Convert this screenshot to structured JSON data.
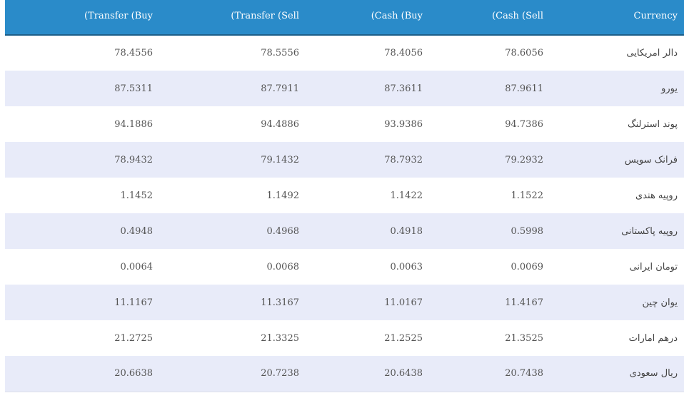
{
  "table": {
    "headers": {
      "transfer_buy": "(Transfer (Buy",
      "transfer_sell": "(Transfer (Sell",
      "cash_buy": "(Cash (Buy",
      "cash_sell": "(Cash (Sell",
      "currency": "Currency"
    },
    "rows": [
      {
        "transfer_buy": "78.4556",
        "transfer_sell": "78.5556",
        "cash_buy": "78.4056",
        "cash_sell": "78.6056",
        "currency": "دالر امریکایی"
      },
      {
        "transfer_buy": "87.5311",
        "transfer_sell": "87.7911",
        "cash_buy": "87.3611",
        "cash_sell": "87.9611",
        "currency": "یورو"
      },
      {
        "transfer_buy": "94.1886",
        "transfer_sell": "94.4886",
        "cash_buy": "93.9386",
        "cash_sell": "94.7386",
        "currency": "پوند استرلنگ"
      },
      {
        "transfer_buy": "78.9432",
        "transfer_sell": "79.1432",
        "cash_buy": "78.7932",
        "cash_sell": "79.2932",
        "currency": "فرانک سویس"
      },
      {
        "transfer_buy": "1.1452",
        "transfer_sell": "1.1492",
        "cash_buy": "1.1422",
        "cash_sell": "1.1522",
        "currency": "روپیه هندی"
      },
      {
        "transfer_buy": "0.4948",
        "transfer_sell": "0.4968",
        "cash_buy": "0.4918",
        "cash_sell": "0.5998",
        "currency": "روپیه پاکستانی"
      },
      {
        "transfer_buy": "0.0064",
        "transfer_sell": "0.0068",
        "cash_buy": "0.0063",
        "cash_sell": "0.0069",
        "currency": "تومان ایرانی"
      },
      {
        "transfer_buy": "11.1167",
        "transfer_sell": "11.3167",
        "cash_buy": "11.0167",
        "cash_sell": "11.4167",
        "currency": "یوان چین"
      },
      {
        "transfer_buy": "21.2725",
        "transfer_sell": "21.3325",
        "cash_buy": "21.2525",
        "cash_sell": "21.3525",
        "currency": "درهم امارات"
      },
      {
        "transfer_buy": "20.6638",
        "transfer_sell": "20.7238",
        "cash_buy": "20.6438",
        "cash_sell": "20.7438",
        "currency": "ریال سعودی"
      }
    ]
  },
  "colors": {
    "header_bg": "#2a8bc9",
    "header_text": "#ffffff",
    "row_alt_bg": "#e8ebf9",
    "row_bg": "#ffffff"
  }
}
